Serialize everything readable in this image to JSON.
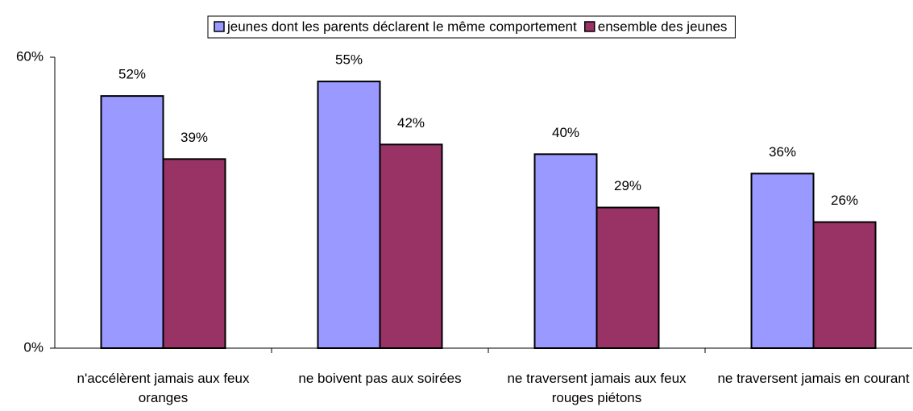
{
  "chart_data": {
    "type": "bar",
    "categories": [
      "n'accélèrent jamais aux feux oranges",
      "ne boivent pas aux soirées",
      "ne traversent jamais aux feux rouges piétons",
      "ne traversent jamais en courant"
    ],
    "series": [
      {
        "name": "jeunes dont les parents déclarent le même comportement",
        "color": "#9999ff",
        "values": [
          52,
          55,
          40,
          36
        ],
        "value_labels": [
          "52%",
          "55%",
          "40%",
          "36%"
        ]
      },
      {
        "name": "ensemble des jeunes",
        "color": "#993366",
        "values": [
          39,
          42,
          29,
          26
        ],
        "value_labels": [
          "39%",
          "42%",
          "29%",
          "26%"
        ]
      }
    ],
    "ylim": [
      0,
      60
    ],
    "yticks": [
      {
        "value": 0,
        "label": "0%"
      },
      {
        "value": 60,
        "label": "60%"
      }
    ],
    "legend": "top"
  }
}
